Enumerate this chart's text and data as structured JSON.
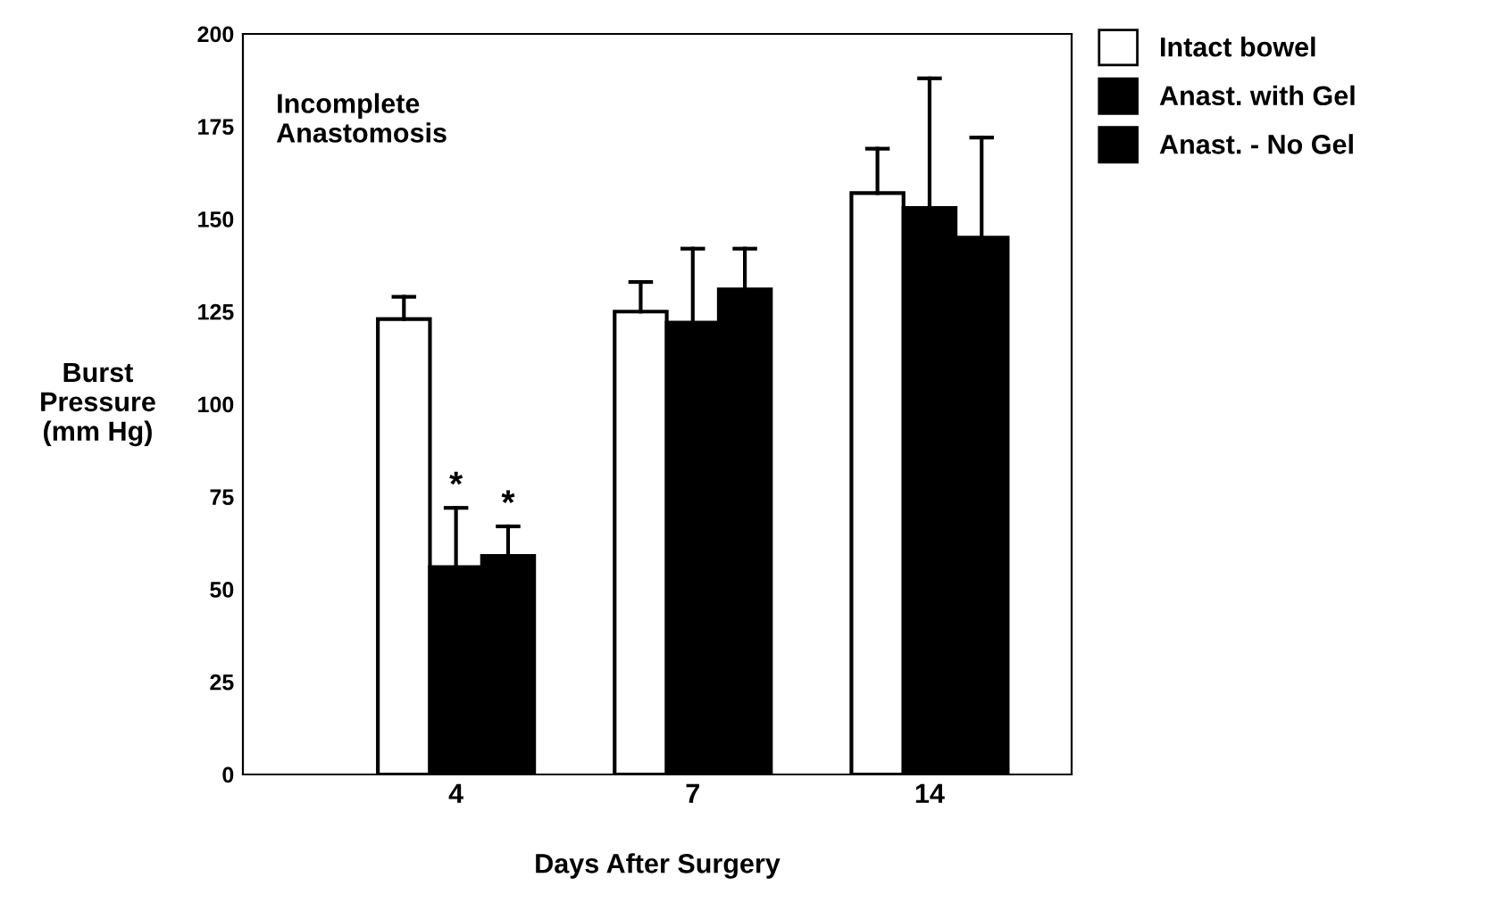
{
  "chart_data": {
    "type": "bar",
    "categories": [
      "4",
      "7",
      "14"
    ],
    "series": [
      {
        "name": "Intact bowel",
        "color": "#ffffff",
        "values": [
          123,
          125,
          157
        ],
        "errors": [
          [
            123,
            129
          ],
          [
            125,
            133
          ],
          [
            157,
            169
          ]
        ]
      },
      {
        "name": "Anast. with Gel",
        "color": "#000000",
        "values": [
          56,
          122,
          153
        ],
        "errors": [
          [
            56,
            72
          ],
          [
            122,
            142
          ],
          [
            153,
            188
          ]
        ]
      },
      {
        "name": "Anast. - No Gel",
        "color": "#000000",
        "values": [
          59,
          131,
          145
        ],
        "errors": [
          [
            59,
            67
          ],
          [
            131,
            142
          ],
          [
            145,
            172
          ]
        ]
      }
    ],
    "xlabel": "Days After Surgery",
    "ylabel": "Burst\nPressure\n(mm Hg)",
    "ylim": [
      0,
      200
    ],
    "yticks": [
      0,
      25,
      50,
      75,
      100,
      125,
      150,
      175,
      200
    ],
    "annotations": [
      "Incomplete\nAnastomosis",
      {
        "text": "*",
        "x": "4",
        "y": 72
      },
      {
        "text": "*",
        "x": "4",
        "y": 67
      }
    ],
    "legend": "top right",
    "grid": false
  }
}
